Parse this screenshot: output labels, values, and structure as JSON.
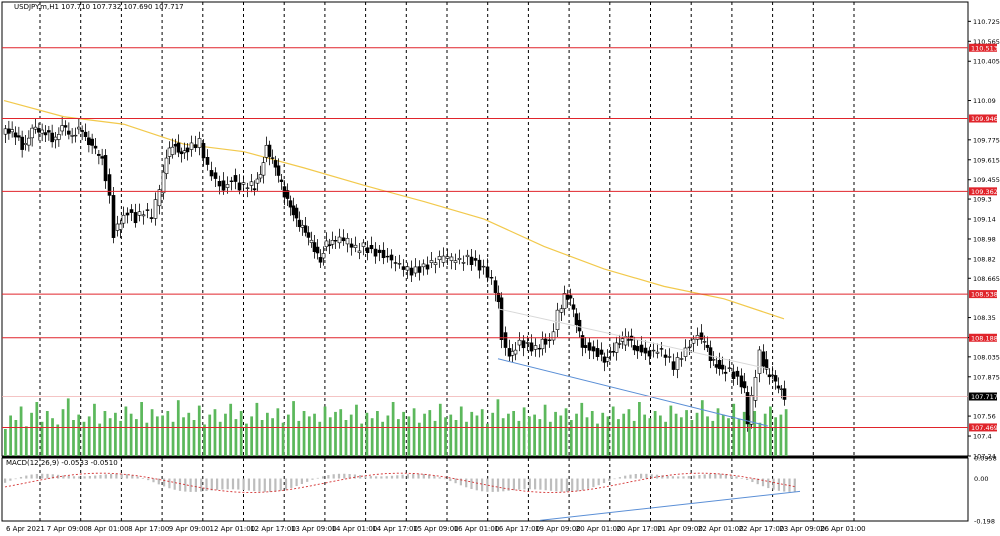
{
  "title_text": "USDJPY.m,H1  107.710 107.732 107.690 107.717",
  "macd_text": "MACD(12,26,9) -0.0533 -0.0510",
  "chart_data": {
    "type": "candlestick",
    "symbol": "USDJPY.m",
    "timeframe": "H1",
    "ohlc": {
      "open": 107.71,
      "high": 107.732,
      "low": 107.69,
      "close": 107.717
    },
    "last_price": 107.717,
    "ylim": [
      107.24,
      110.88
    ],
    "yticks": [
      110.725,
      110.565,
      110.405,
      110.09,
      109.775,
      109.615,
      109.455,
      109.3,
      109.14,
      108.98,
      108.82,
      108.665,
      108.35,
      108.19,
      108.035,
      107.875,
      107.56,
      107.4,
      107.24
    ],
    "xticks": [
      "6 Apr 2021",
      "7 Apr 09:00",
      "8 Apr 01:00",
      "8 Apr 17:00",
      "9 Apr 09:00",
      "12 Apr 01:00",
      "12 Apr 17:00",
      "13 Apr 09:00",
      "14 Apr 01:00",
      "14 Apr 17:00",
      "15 Apr 09:00",
      "16 Apr 01:00",
      "16 Apr 17:00",
      "19 Apr 09:00",
      "20 Apr 01:00",
      "20 Apr 17:00",
      "21 Apr 09:00",
      "22 Apr 01:00",
      "22 Apr 17:00",
      "23 Apr 09:00",
      "26 Apr 01:00"
    ],
    "horizontal_levels": [
      {
        "value": 110.513,
        "label": "110.513"
      },
      {
        "value": 109.946,
        "label": "109.946"
      },
      {
        "value": 109.362,
        "label": "109.362"
      },
      {
        "value": 108.538,
        "label": "108.538"
      },
      {
        "value": 108.188,
        "label": "108.188"
      },
      {
        "value": 107.469,
        "label": "107.469"
      }
    ],
    "moving_average_path": [
      [
        0,
        110.09
      ],
      [
        60,
        109.96
      ],
      [
        120,
        109.9
      ],
      [
        180,
        109.74
      ],
      [
        240,
        109.68
      ],
      [
        300,
        109.55
      ],
      [
        360,
        109.41
      ],
      [
        420,
        109.28
      ],
      [
        480,
        109.14
      ],
      [
        540,
        108.92
      ],
      [
        600,
        108.74
      ],
      [
        660,
        108.6
      ],
      [
        720,
        108.5
      ],
      [
        780,
        108.34
      ]
    ],
    "close_path": [
      [
        0,
        109.82
      ],
      [
        10,
        109.86
      ],
      [
        20,
        109.72
      ],
      [
        30,
        109.84
      ],
      [
        40,
        109.86
      ],
      [
        50,
        109.78
      ],
      [
        60,
        109.86
      ],
      [
        70,
        109.82
      ],
      [
        80,
        109.86
      ],
      [
        90,
        109.7
      ],
      [
        100,
        109.64
      ],
      [
        108,
        109.3
      ],
      [
        112,
        109.02
      ],
      [
        118,
        109.12
      ],
      [
        126,
        109.2
      ],
      [
        134,
        109.14
      ],
      [
        142,
        109.2
      ],
      [
        150,
        109.16
      ],
      [
        158,
        109.38
      ],
      [
        164,
        109.62
      ],
      [
        170,
        109.74
      ],
      [
        176,
        109.7
      ],
      [
        182,
        109.68
      ],
      [
        190,
        109.72
      ],
      [
        198,
        109.76
      ],
      [
        206,
        109.56
      ],
      [
        214,
        109.46
      ],
      [
        222,
        109.38
      ],
      [
        230,
        109.46
      ],
      [
        238,
        109.4
      ],
      [
        246,
        109.42
      ],
      [
        252,
        109.4
      ],
      [
        258,
        109.52
      ],
      [
        264,
        109.72
      ],
      [
        270,
        109.6
      ],
      [
        276,
        109.48
      ],
      [
        282,
        109.34
      ],
      [
        288,
        109.26
      ],
      [
        294,
        109.14
      ],
      [
        300,
        109.06
      ],
      [
        306,
        108.98
      ],
      [
        312,
        108.9
      ],
      [
        318,
        108.82
      ],
      [
        324,
        108.96
      ],
      [
        330,
        108.94
      ],
      [
        338,
        108.98
      ],
      [
        346,
        108.96
      ],
      [
        354,
        108.9
      ],
      [
        362,
        108.92
      ],
      [
        370,
        108.88
      ],
      [
        378,
        108.86
      ],
      [
        386,
        108.84
      ],
      [
        394,
        108.8
      ],
      [
        402,
        108.76
      ],
      [
        410,
        108.72
      ],
      [
        418,
        108.74
      ],
      [
        426,
        108.76
      ],
      [
        434,
        108.8
      ],
      [
        442,
        108.84
      ],
      [
        450,
        108.82
      ],
      [
        458,
        108.8
      ],
      [
        466,
        108.82
      ],
      [
        474,
        108.78
      ],
      [
        482,
        108.74
      ],
      [
        490,
        108.66
      ],
      [
        496,
        108.48
      ],
      [
        500,
        108.2
      ],
      [
        504,
        108.08
      ],
      [
        510,
        108.06
      ],
      [
        518,
        108.14
      ],
      [
        526,
        108.12
      ],
      [
        534,
        108.1
      ],
      [
        540,
        108.16
      ],
      [
        548,
        108.14
      ],
      [
        556,
        108.38
      ],
      [
        562,
        108.52
      ],
      [
        568,
        108.48
      ],
      [
        574,
        108.3
      ],
      [
        580,
        108.14
      ],
      [
        588,
        108.1
      ],
      [
        596,
        108.06
      ],
      [
        602,
        108.02
      ],
      [
        608,
        108.08
      ],
      [
        614,
        108.12
      ],
      [
        620,
        108.16
      ],
      [
        626,
        108.18
      ],
      [
        632,
        108.12
      ],
      [
        640,
        108.08
      ],
      [
        648,
        108.06
      ],
      [
        656,
        108.1
      ],
      [
        664,
        108.06
      ],
      [
        672,
        107.96
      ],
      [
        680,
        108.04
      ],
      [
        688,
        108.12
      ],
      [
        696,
        108.2
      ],
      [
        702,
        108.14
      ],
      [
        708,
        108.02
      ],
      [
        714,
        107.98
      ],
      [
        720,
        107.94
      ],
      [
        728,
        107.92
      ],
      [
        736,
        107.86
      ],
      [
        742,
        107.78
      ],
      [
        746,
        107.52
      ],
      [
        750,
        107.7
      ],
      [
        754,
        107.9
      ],
      [
        758,
        108.06
      ],
      [
        764,
        107.92
      ],
      [
        770,
        107.86
      ],
      [
        776,
        107.78
      ],
      [
        782,
        107.72
      ]
    ],
    "trendlines_main": [
      {
        "from": [
          498,
          108.02
        ],
        "to": [
          768,
          107.48
        ]
      },
      {
        "from": [
          498,
          108.42
        ],
        "to": [
          768,
          107.94
        ]
      }
    ],
    "volumes": [
      30,
      45,
      40,
      55,
      33,
      48,
      60,
      38,
      50,
      42,
      35,
      52,
      64,
      40,
      46,
      38,
      44,
      58,
      36,
      50,
      42,
      48,
      39,
      55,
      47,
      41,
      60,
      37,
      52,
      44,
      45,
      50,
      38,
      62,
      43,
      48,
      40,
      56,
      35,
      46,
      52,
      38,
      47,
      58,
      41,
      50,
      36,
      44,
      59,
      40,
      48,
      42,
      53,
      37,
      46,
      61,
      39,
      50,
      44,
      47,
      38,
      55,
      43,
      49,
      52,
      40,
      46,
      57,
      36,
      48,
      42,
      50,
      38,
      45,
      60,
      41,
      49,
      44,
      53,
      37,
      47,
      51,
      39,
      58,
      43,
      46,
      40,
      55,
      38,
      49,
      45,
      52,
      36,
      48,
      63,
      42,
      47,
      50,
      39,
      54,
      44,
      46,
      41,
      57,
      38,
      49,
      45,
      53,
      40,
      47,
      59,
      43,
      50,
      36,
      48,
      44,
      55,
      41,
      47,
      52,
      39,
      60,
      46,
      42,
      50,
      45,
      38,
      56,
      47,
      43,
      51,
      40,
      48,
      62,
      44,
      39,
      53,
      46,
      42,
      58,
      41,
      49,
      45,
      50,
      37,
      47,
      55,
      43,
      46,
      52
    ],
    "macd": {
      "params": "12,26,9",
      "value": -0.0533,
      "signal": -0.051,
      "ylim": [
        -0.198,
        0.0958
      ],
      "yticks": [
        0.0958,
        0.0,
        -0.198
      ],
      "trendline": {
        "from": [
          540,
          -0.195
        ],
        "to": [
          800,
          -0.06
        ]
      }
    }
  },
  "colors": {
    "background": "#ffffff",
    "candle_up": "#000000",
    "candle_down": "#000000",
    "level_line": "#e0242b",
    "level_label_bg": "#e0242b",
    "moving_average": "#f2c94c",
    "trendline": "#5b8fd6",
    "volume": "#5cb85c",
    "macd_hist": "#bdbdbd",
    "macd_signal": "#d32f2f",
    "grid": "#000000",
    "last_price_bg": "#000000"
  }
}
